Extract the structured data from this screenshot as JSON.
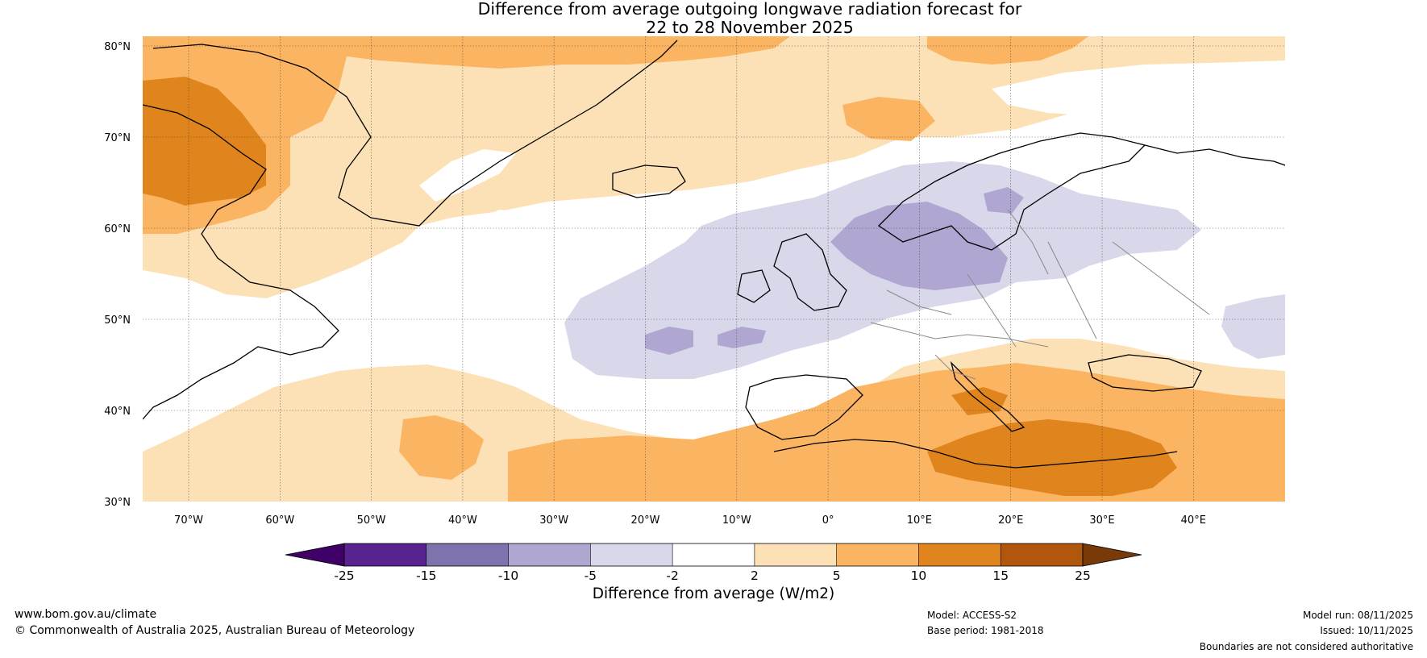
{
  "title": {
    "line1": "Difference from average outgoing longwave radiation forecast for",
    "line2": "22 to 28 November 2025"
  },
  "map": {
    "latitude_labels": [
      "80°N",
      "70°N",
      "60°N",
      "50°N",
      "40°N",
      "30°N"
    ],
    "longitude_labels": [
      "70°W",
      "60°W",
      "50°W",
      "40°W",
      "30°W",
      "20°W",
      "10°W",
      "0°",
      "10°E",
      "20°E",
      "30°E",
      "40°E"
    ],
    "palette": {
      "pos_2_5": "#fde1b6",
      "pos_5_10": "#fbb562",
      "pos_10_15": "#e0841e",
      "neg_2_5": "#d8d8ea",
      "neg_5_10": "#afa7d1",
      "neutral": "#ffffff",
      "coast": "#000000",
      "border": "#888888"
    }
  },
  "colorbar": {
    "ticks": [
      "-25",
      "-15",
      "-10",
      "-5",
      "-2",
      "2",
      "5",
      "10",
      "15",
      "25"
    ],
    "colors": [
      "#3f0067",
      "#58228f",
      "#7f73ae",
      "#afa7d1",
      "#d8d8ea",
      "#ffffff",
      "#fde1b6",
      "#fbb562",
      "#e0841e",
      "#b0560d",
      "#7a3a08"
    ],
    "label": "Difference from average (W/m2)"
  },
  "footer": {
    "website": "www.bom.gov.au/climate",
    "copyright": "© Commonwealth of Australia 2025, Australian Bureau of Meteorology",
    "model": "Model: ACCESS-S2",
    "base_period": "Base period: 1981-2018",
    "model_run": "Model run: 08/11/2025",
    "issued": "Issued: 10/11/2025",
    "disclaimer": "Boundaries are not considered authoritative"
  }
}
